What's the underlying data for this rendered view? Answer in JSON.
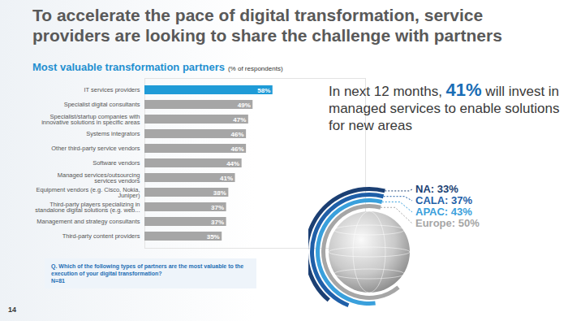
{
  "title": "To accelerate the pace of digital transformation, service providers are looking to share the challenge with partners",
  "chart_data": {
    "type": "bar",
    "orientation": "horizontal",
    "title": "Most valuable transformation partners",
    "subtitle": "(% of respondents)",
    "categories": [
      "IT services providers",
      "Specialist digital consultants",
      "Specialist/startup companies with innovative solutions in specific areas",
      "Systems integrators",
      "Other third-party service vendors",
      "Software vendors",
      "Managed services/outsourcing services vendors",
      "Equipment vendors (e.g. Cisco, Nokia, Juniper)",
      "Third-party players specializing in standalone digital solutions (e.g. web...",
      "Management and strategy consultants",
      "Third-party content providers"
    ],
    "values": [
      58,
      49,
      47,
      46,
      46,
      44,
      41,
      38,
      37,
      37,
      35
    ],
    "value_labels": [
      "58%",
      "49%",
      "47%",
      "46%",
      "46%",
      "44%",
      "41%",
      "38%",
      "37%",
      "37%",
      "35%"
    ],
    "colors": [
      "#1f9bd7",
      "#a6a6a6",
      "#a6a6a6",
      "#a6a6a6",
      "#a6a6a6",
      "#a6a6a6",
      "#a6a6a6",
      "#a6a6a6",
      "#a6a6a6",
      "#a6a6a6",
      "#a6a6a6"
    ],
    "xlim": [
      0,
      100
    ],
    "xticks": [],
    "tick_labels": "y",
    "data_labels": true
  },
  "question": "Q. Which of the following types of partners are the most valuable to the execution of your digital transformation?",
  "sample": "N=81",
  "callout": {
    "before": "In next 12 months, ",
    "highlight": "41%",
    "after": " will invest in managed services to enable solutions for new areas"
  },
  "regions": {
    "values": [
      33,
      37,
      43,
      50
    ],
    "labels": [
      "NA: 33%",
      "CALA: 37%",
      "APAC: 43%",
      "Europe: 50%"
    ],
    "colors": [
      "#1b3f73",
      "#1f5fa8",
      "#3aa0dc",
      "#a6a6a6"
    ]
  },
  "page_number": "14"
}
